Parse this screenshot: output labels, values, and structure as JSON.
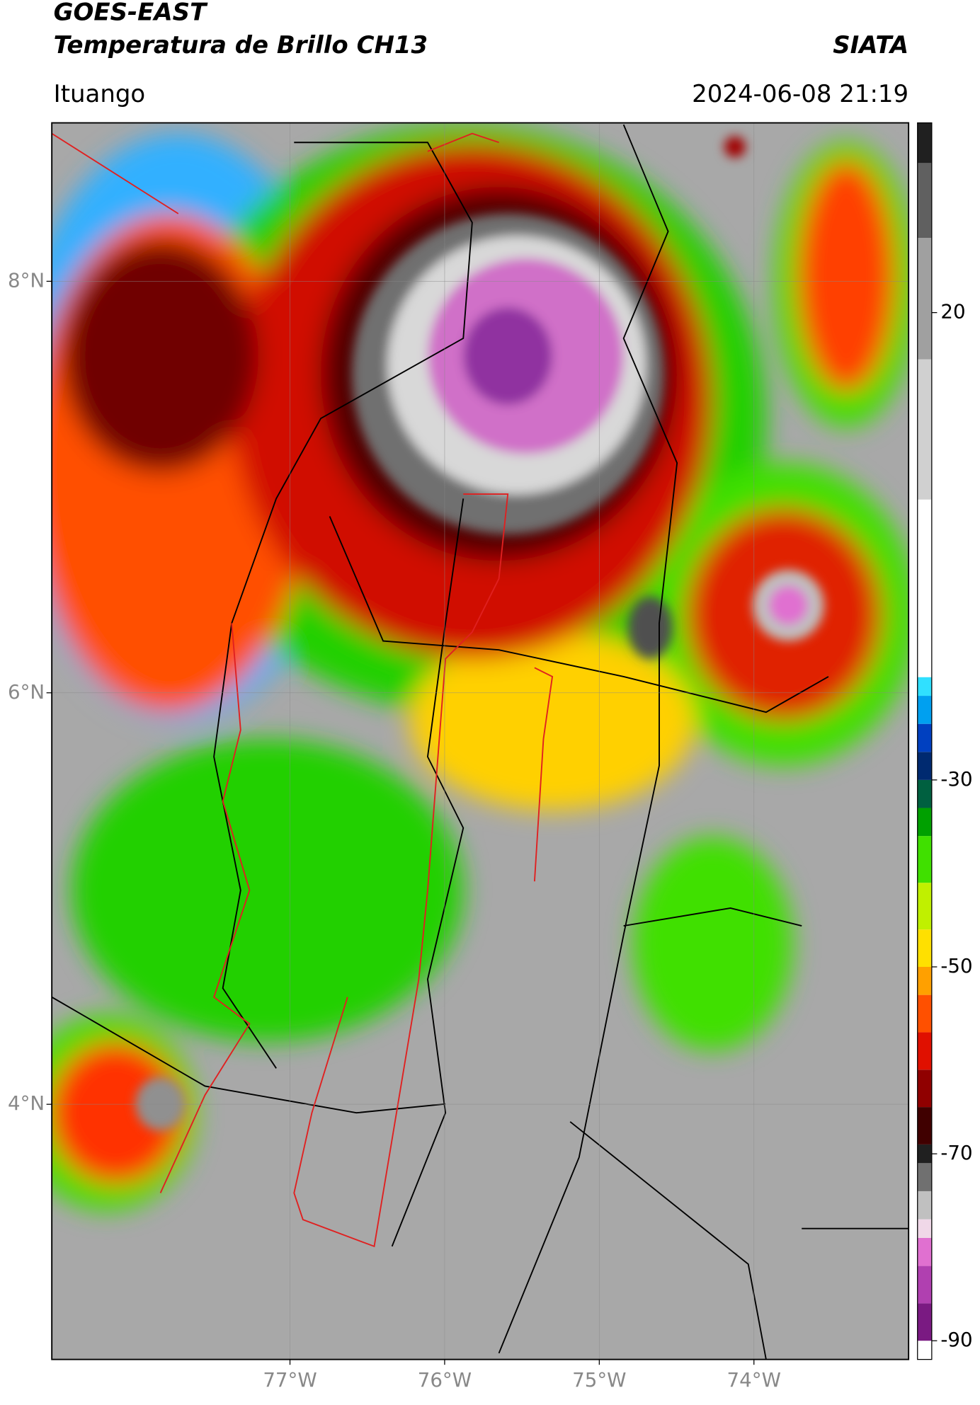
{
  "header": {
    "title": "GOES-EAST",
    "subtitle": "Temperatura de Brillo CH13",
    "source": "SIATA",
    "location": "Ituango",
    "datetime": "2024-06-08 21:19"
  },
  "map": {
    "xlim": [
      -78.54,
      -73.0
    ],
    "ylim": [
      2.76,
      8.77
    ],
    "xticks": [
      {
        "value": -77,
        "label": "77°W"
      },
      {
        "value": -76,
        "label": "76°W"
      },
      {
        "value": -75,
        "label": "75°W"
      },
      {
        "value": -74,
        "label": "74°W"
      }
    ],
    "yticks": [
      {
        "value": 8,
        "label": "8°N"
      },
      {
        "value": 6,
        "label": "6°N"
      },
      {
        "value": 4,
        "label": "4°N"
      }
    ],
    "grid": true
  },
  "colorbar": {
    "clim": [
      -92,
      40.3
    ],
    "ticks": [
      20,
      -30,
      -50,
      -70,
      -90
    ],
    "colormap": [
      {
        "value": -92,
        "color": "#ffffff"
      },
      {
        "value": -90,
        "color": "#7a1a82"
      },
      {
        "value": -86,
        "color": "#b040b0"
      },
      {
        "value": -82,
        "color": "#e070d0"
      },
      {
        "value": -79,
        "color": "#f0d8e8"
      },
      {
        "value": -77,
        "color": "#c0c0c0"
      },
      {
        "value": -74,
        "color": "#707070"
      },
      {
        "value": -71,
        "color": "#202020"
      },
      {
        "value": -69,
        "color": "#400000"
      },
      {
        "value": -65,
        "color": "#900000"
      },
      {
        "value": -61,
        "color": "#e01000"
      },
      {
        "value": -57,
        "color": "#ff5000"
      },
      {
        "value": -53,
        "color": "#ffa000"
      },
      {
        "value": -50,
        "color": "#ffe000"
      },
      {
        "value": -46,
        "color": "#c0f000"
      },
      {
        "value": -41,
        "color": "#40e000"
      },
      {
        "value": -36,
        "color": "#00a000"
      },
      {
        "value": -33,
        "color": "#006040"
      },
      {
        "value": -30,
        "color": "#002a70"
      },
      {
        "value": -27,
        "color": "#0040c0"
      },
      {
        "value": -24,
        "color": "#00a0f0"
      },
      {
        "value": -21,
        "color": "#30e0ff"
      },
      {
        "value": -19,
        "color": "#ffffff"
      },
      {
        "value": 0,
        "color": "#d0d0d0"
      },
      {
        "value": 15,
        "color": "#a0a0a0"
      },
      {
        "value": 28,
        "color": "#606060"
      },
      {
        "value": 36,
        "color": "#202020"
      }
    ]
  }
}
